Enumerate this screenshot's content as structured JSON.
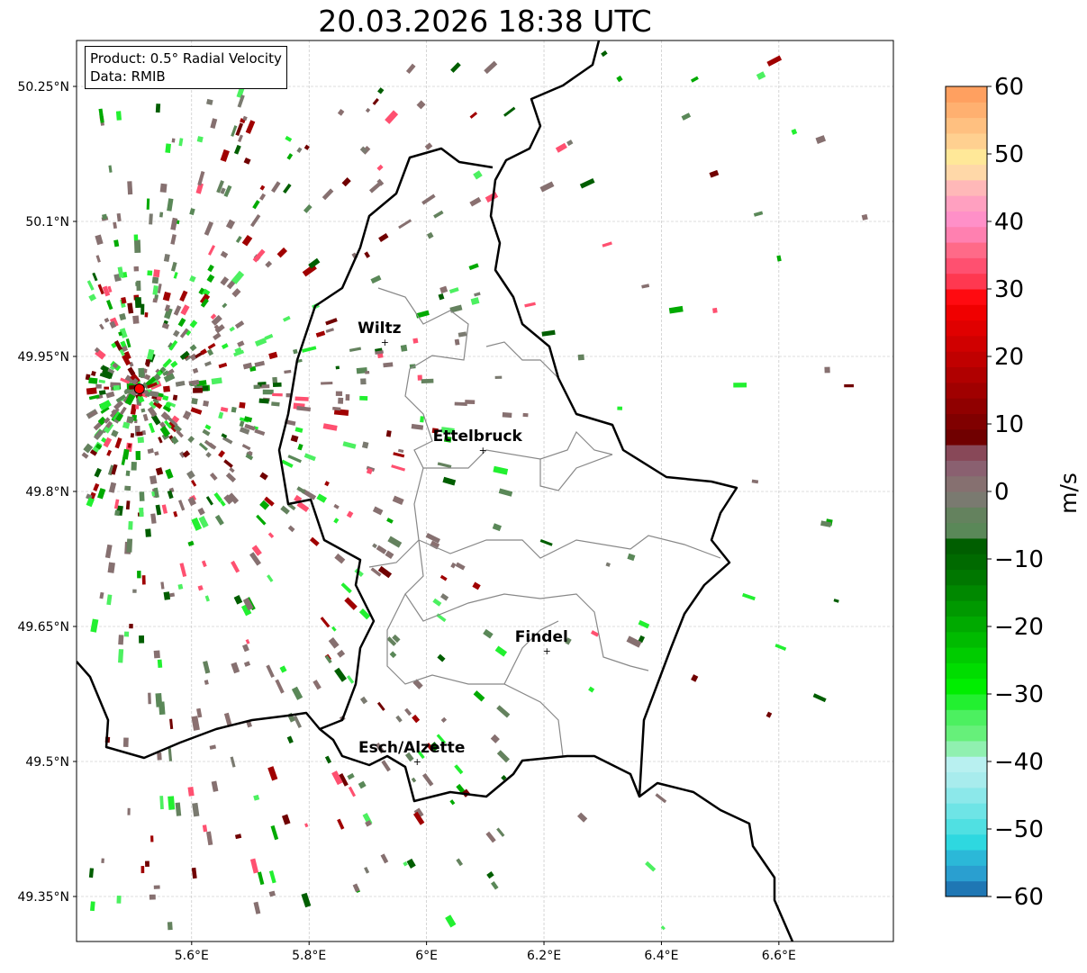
{
  "title": "20.03.2026 18:38 UTC",
  "info": {
    "product": "Product: 0.5° Radial Velocity",
    "data": "Data: RMIB"
  },
  "axes": {
    "lon_ticks": [
      {
        "v": 5.6,
        "label": "5.6°E"
      },
      {
        "v": 5.8,
        "label": "5.8°E"
      },
      {
        "v": 6.0,
        "label": "6°E"
      },
      {
        "v": 6.2,
        "label": "6.2°E"
      },
      {
        "v": 6.4,
        "label": "6.4°E"
      },
      {
        "v": 6.6,
        "label": "6.6°E"
      }
    ],
    "lat_ticks": [
      {
        "v": 50.25,
        "label": "50.25°N"
      },
      {
        "v": 50.1,
        "label": "50.1°N"
      },
      {
        "v": 49.95,
        "label": "49.95°N"
      },
      {
        "v": 49.8,
        "label": "49.8°N"
      },
      {
        "v": 49.65,
        "label": "49.65°N"
      },
      {
        "v": 49.5,
        "label": "49.5°N"
      },
      {
        "v": 49.35,
        "label": "49.35°N"
      }
    ],
    "lon_range": [
      5.404,
      6.795
    ],
    "lat_range": [
      49.3,
      50.301
    ]
  },
  "radar_site": {
    "lon": 5.511,
    "lat": 49.914,
    "color": "#ff0000"
  },
  "cities": [
    {
      "name": "Wiltz",
      "lon": 5.929,
      "lat": 49.966
    },
    {
      "name": "Ettelbruck",
      "lon": 6.096,
      "lat": 49.846
    },
    {
      "name": "Findel",
      "lon": 6.205,
      "lat": 49.623
    },
    {
      "name": "Esch/Alzette",
      "lon": 5.984,
      "lat": 49.5
    }
  ],
  "colorbar": {
    "label": "m/s",
    "range": [
      -60,
      60
    ],
    "ticks": [
      "60",
      "50",
      "40",
      "30",
      "20",
      "10",
      "0",
      "−10",
      "−20",
      "−30",
      "−40",
      "−50",
      "−60"
    ],
    "colors": [
      "#1f77b4",
      "#2a9fd0",
      "#2bb8d8",
      "#2ed8e0",
      "#50e0e2",
      "#6ee4e6",
      "#8ce8ea",
      "#a8eced",
      "#b8f0f0",
      "#90f0b0",
      "#66f07a",
      "#4cf060",
      "#22f030",
      "#00ee00",
      "#00dd00",
      "#00cc00",
      "#00bb00",
      "#00aa00",
      "#009900",
      "#008800",
      "#007700",
      "#006a00",
      "#005e00",
      "#5a8858",
      "#64825e",
      "#7a7a70",
      "#867070",
      "#8a6070",
      "#884858",
      "#700000",
      "#800000",
      "#900000",
      "#a00000",
      "#b00000",
      "#c00000",
      "#d00000",
      "#e00000",
      "#f00000",
      "#ff0a10",
      "#ff3850",
      "#ff5070",
      "#ff6a88",
      "#ff80b0",
      "#ff90c8",
      "#ffa0c0",
      "#ffb8b8",
      "#ffd8a8",
      "#ffe898",
      "#ffd090",
      "#ffc080",
      "#ffb070",
      "#ffa060"
    ]
  }
}
